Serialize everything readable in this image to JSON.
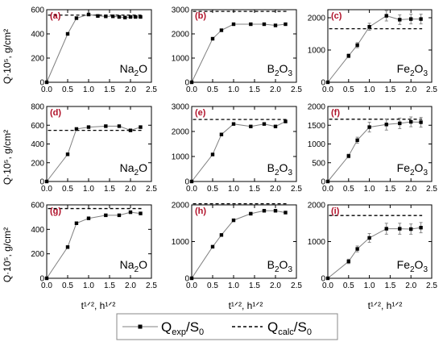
{
  "figure": {
    "ylabel": "Q·10⁵, g/cm²",
    "xlabel": "t¹ᐟ², h¹ᐟ²",
    "legend": {
      "exp_label": "Q_exp/S_0",
      "calc_label": "Q_calc/S_0"
    },
    "colors": {
      "exp": "#808080",
      "calc": "#000000",
      "panel_tag": "#b0122a"
    }
  },
  "chart_data": [
    {
      "type": "line",
      "tag": "(a)",
      "oxide": "Na2O",
      "xlim": [
        0,
        2.5
      ],
      "ylim": [
        0,
        600
      ],
      "xticks": [
        0.0,
        0.5,
        1.0,
        1.5,
        2.0,
        2.5
      ],
      "yticks": [
        0,
        200,
        400,
        600
      ],
      "series": [
        {
          "x": [
            0,
            0.5,
            0.71,
            1.0,
            1.22,
            1.41,
            1.58,
            1.73,
            1.87,
            2.0,
            2.12,
            2.24
          ],
          "y": [
            0,
            400,
            530,
            560,
            548,
            545,
            545,
            540,
            535,
            540,
            540,
            540
          ]
        }
      ],
      "calc": 555
    },
    {
      "type": "line",
      "tag": "(b)",
      "oxide": "B2O3",
      "xlim": [
        0,
        2.5
      ],
      "ylim": [
        0,
        3000
      ],
      "xticks": [
        0.0,
        0.5,
        1.0,
        1.5,
        2.0,
        2.5
      ],
      "yticks": [
        0,
        1000,
        2000,
        3000
      ],
      "series": [
        {
          "x": [
            0,
            0.5,
            0.71,
            1.0,
            1.41,
            1.73,
            2.0,
            2.24
          ],
          "y": [
            0,
            1800,
            2150,
            2400,
            2400,
            2400,
            2350,
            2400
          ]
        }
      ],
      "calc": 2930
    },
    {
      "type": "line",
      "tag": "(c)",
      "oxide": "Fe2O3",
      "xlim": [
        0,
        2.5
      ],
      "ylim": [
        0,
        2250
      ],
      "xticks": [
        0.0,
        0.5,
        1.0,
        1.5,
        2.0,
        2.5
      ],
      "yticks": [
        0,
        1000,
        2000
      ],
      "series": [
        {
          "x": [
            0,
            0.5,
            0.71,
            1.0,
            1.41,
            1.73,
            2.0,
            2.24
          ],
          "y": [
            0,
            820,
            1150,
            1720,
            2060,
            1940,
            1960,
            1960
          ],
          "err": [
            0,
            60,
            80,
            110,
            160,
            150,
            150,
            150
          ]
        }
      ],
      "calc": 1660
    },
    {
      "type": "line",
      "tag": "(d)",
      "oxide": "Na2O",
      "xlim": [
        0,
        2.5
      ],
      "ylim": [
        0,
        800
      ],
      "xticks": [
        0.0,
        0.5,
        1.0,
        1.5,
        2.0,
        2.5
      ],
      "yticks": [
        0,
        200,
        400,
        600,
        800
      ],
      "series": [
        {
          "x": [
            0,
            0.5,
            0.71,
            1.0,
            1.41,
            1.73,
            2.0,
            2.24
          ],
          "y": [
            0,
            290,
            560,
            580,
            590,
            590,
            545,
            580
          ]
        }
      ],
      "calc": 545
    },
    {
      "type": "line",
      "tag": "(e)",
      "oxide": "B2O3",
      "xlim": [
        0,
        2.5
      ],
      "ylim": [
        0,
        3000
      ],
      "xticks": [
        0.0,
        0.5,
        1.0,
        1.5,
        2.0,
        2.5
      ],
      "yticks": [
        0,
        1000,
        2000,
        3000
      ],
      "series": [
        {
          "x": [
            0,
            0.5,
            0.71,
            1.0,
            1.41,
            1.73,
            2.0,
            2.24
          ],
          "y": [
            0,
            1080,
            1880,
            2300,
            2200,
            2300,
            2200,
            2400
          ]
        }
      ],
      "calc": 2480
    },
    {
      "type": "line",
      "tag": "(f)",
      "oxide": "Fe2O3",
      "xlim": [
        0,
        2.5
      ],
      "ylim": [
        0,
        2000
      ],
      "xticks": [
        0.0,
        0.5,
        1.0,
        1.5,
        2.0,
        2.5
      ],
      "yticks": [
        0,
        500,
        1000,
        1500,
        2000
      ],
      "series": [
        {
          "x": [
            0,
            0.5,
            0.71,
            1.0,
            1.41,
            1.73,
            2.0,
            2.24
          ],
          "y": [
            0,
            680,
            1100,
            1450,
            1520,
            1550,
            1590,
            1580
          ],
          "err": [
            0,
            50,
            80,
            130,
            150,
            140,
            130,
            130
          ]
        }
      ],
      "calc": 1660
    },
    {
      "type": "line",
      "tag": "(g)",
      "oxide": "Na2O",
      "xlim": [
        0,
        2.5
      ],
      "ylim": [
        0,
        600
      ],
      "xticks": [
        0.0,
        0.5,
        1.0,
        1.5,
        2.0,
        2.5
      ],
      "yticks": [
        0,
        200,
        400,
        600
      ],
      "series": [
        {
          "x": [
            0,
            0.5,
            0.71,
            1.0,
            1.41,
            1.73,
            2.0,
            2.24
          ],
          "y": [
            0,
            255,
            450,
            490,
            515,
            515,
            540,
            530
          ]
        }
      ],
      "calc": 570
    },
    {
      "type": "line",
      "tag": "(h)",
      "oxide": "B2O3",
      "xlim": [
        0,
        2.5
      ],
      "ylim": [
        0,
        2000
      ],
      "xticks": [
        0.0,
        0.5,
        1.0,
        1.5,
        2.0,
        2.5
      ],
      "yticks": [
        0,
        1000,
        2000
      ],
      "series": [
        {
          "x": [
            0,
            0.5,
            0.71,
            1.0,
            1.41,
            1.73,
            2.0,
            2.24
          ],
          "y": [
            0,
            860,
            1180,
            1580,
            1760,
            1840,
            1840,
            1790
          ]
        }
      ],
      "calc": 2030
    },
    {
      "type": "line",
      "tag": "(i)",
      "oxide": "Fe2O3",
      "xlim": [
        0,
        2.5
      ],
      "ylim": [
        0,
        2000
      ],
      "xticks": [
        0.0,
        0.5,
        1.0,
        1.5,
        2.0,
        2.5
      ],
      "yticks": [
        0,
        1000,
        2000
      ],
      "series": [
        {
          "x": [
            0,
            0.5,
            0.71,
            1.0,
            1.41,
            1.73,
            2.0,
            2.24
          ],
          "y": [
            0,
            460,
            800,
            1100,
            1350,
            1350,
            1340,
            1380
          ],
          "err": [
            0,
            60,
            80,
            120,
            150,
            150,
            140,
            140
          ]
        }
      ],
      "calc": 1710
    }
  ]
}
